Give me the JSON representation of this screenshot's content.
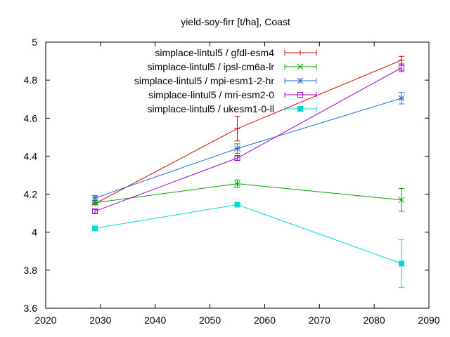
{
  "chart_data": {
    "type": "line",
    "title": "yield-soy-firr [t/ha], Coast",
    "xlabel": "",
    "ylabel": "",
    "xlim": [
      2020,
      2090
    ],
    "ylim": [
      3.6,
      5.0
    ],
    "x_ticks": [
      "2020",
      "2030",
      "2040",
      "2050",
      "2060",
      "2070",
      "2080",
      "2090"
    ],
    "y_ticks": [
      "3.6",
      "3.8",
      "4",
      "4.2",
      "4.4",
      "4.6",
      "4.8",
      "5"
    ],
    "grid": false,
    "legend_position": "top-right",
    "x": [
      2029,
      2055,
      2085
    ],
    "series": [
      {
        "name": "simplace-lintul5 / gfdl-esm4",
        "color": "#dd0000",
        "marker": "plus",
        "values": [
          4.15,
          4.545,
          4.905
        ],
        "errors": [
          0.005,
          0.065,
          0.02
        ]
      },
      {
        "name": "simplace-lintul5 / ipsl-cm6a-lr",
        "color": "#00a000",
        "marker": "x",
        "values": [
          4.155,
          4.255,
          4.17
        ],
        "errors": [
          0.01,
          0.02,
          0.06
        ]
      },
      {
        "name": "simplace-lintul5 / mpi-esm1-2-hr",
        "color": "#1e6fd0",
        "marker": "star",
        "values": [
          4.18,
          4.44,
          4.705
        ],
        "errors": [
          0.012,
          0.025,
          0.03
        ]
      },
      {
        "name": "simplace-lintul5 / mri-esm2-0",
        "color": "#9a00d0",
        "marker": "open-square",
        "values": [
          4.11,
          4.39,
          4.865
        ],
        "errors": [
          0.01,
          0.012,
          0.02
        ]
      },
      {
        "name": "simplace-lintul5 / ukesm1-0-ll",
        "color": "#00d8d8",
        "marker": "filled-square",
        "values": [
          4.02,
          4.145,
          3.835
        ],
        "errors": [
          0.008,
          0.012,
          0.125
        ]
      }
    ]
  }
}
